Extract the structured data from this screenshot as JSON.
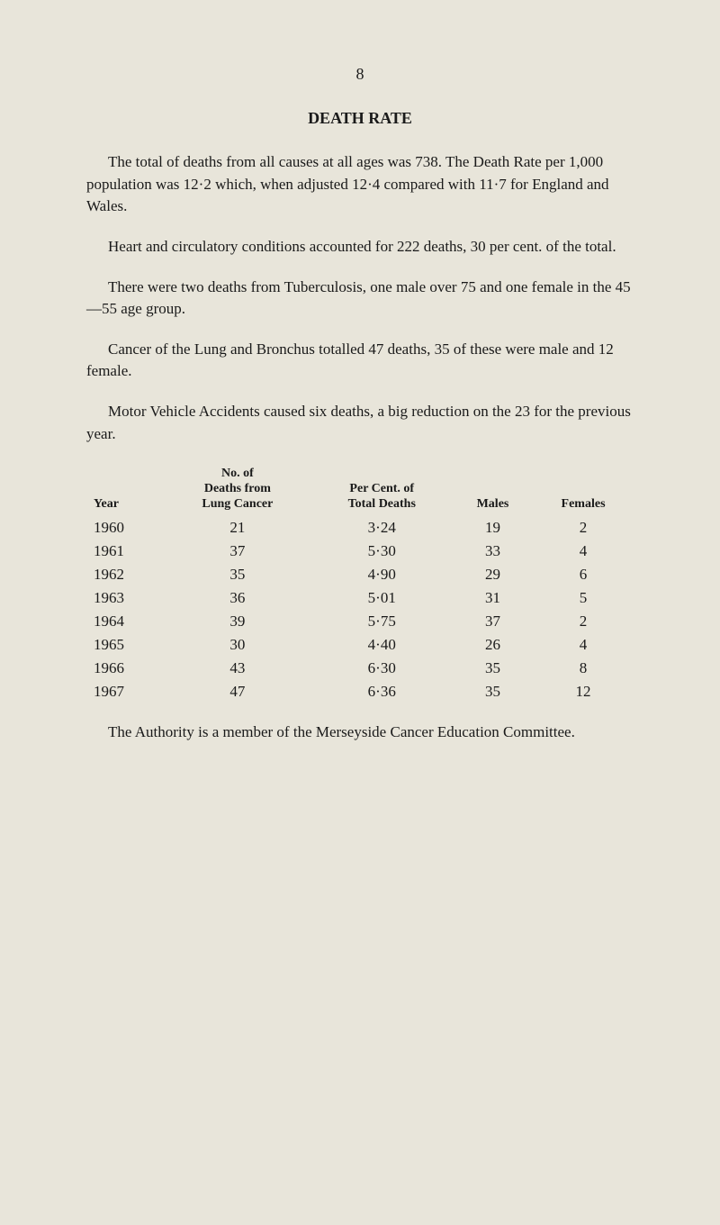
{
  "page_number": "8",
  "title": "DEATH RATE",
  "paragraphs": [
    "The total of deaths from all causes at all ages was 738. The Death Rate per 1,000 population was 12·2 which, when adjusted 12·4 compared with 11·7 for England and Wales.",
    "Heart and circulatory conditions accounted for 222 deaths, 30 per cent. of the total.",
    "There were two deaths from Tuberculosis, one male over 75 and one female in the 45—55 age group.",
    "Cancer of the Lung and Bronchus totalled 47 deaths, 35 of these were male and 12 female.",
    "Motor Vehicle Accidents caused six deaths, a big reduction on the 23 for the previous year."
  ],
  "table": {
    "columns": [
      {
        "header": "Year",
        "class": "year-col"
      },
      {
        "header_lines": [
          "No. of",
          "Deaths from",
          "Lung Cancer"
        ],
        "class": ""
      },
      {
        "header_lines": [
          "Per Cent. of",
          "Total Deaths"
        ],
        "class": ""
      },
      {
        "header": "Males",
        "class": ""
      },
      {
        "header": "Females",
        "class": ""
      }
    ],
    "rows": [
      [
        "1960",
        "21",
        "3·24",
        "19",
        "2"
      ],
      [
        "1961",
        "37",
        "5·30",
        "33",
        "4"
      ],
      [
        "1962",
        "35",
        "4·90",
        "29",
        "6"
      ],
      [
        "1963",
        "36",
        "5·01",
        "31",
        "5"
      ],
      [
        "1964",
        "39",
        "5·75",
        "37",
        "2"
      ],
      [
        "1965",
        "30",
        "4·40",
        "26",
        "4"
      ],
      [
        "1966",
        "43",
        "6·30",
        "35",
        "8"
      ],
      [
        "1967",
        "47",
        "6·36",
        "35",
        "12"
      ]
    ]
  },
  "footer_paragraph": "The Authority is a member of the Merseyside Cancer Education Committee.",
  "colors": {
    "background": "#e8e5da",
    "text": "#1a1a1a"
  },
  "typography": {
    "font_family": "Georgia, 'Times New Roman', serif",
    "body_size": 17,
    "title_size": 18,
    "header_size": 14
  }
}
